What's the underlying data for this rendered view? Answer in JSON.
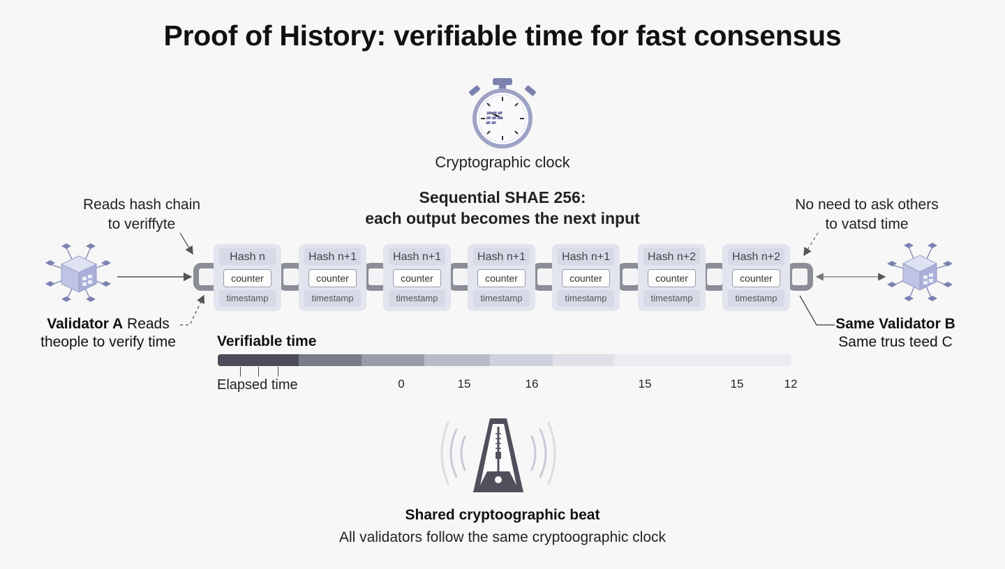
{
  "title": "Proof of History: verifiable time for fast consensus",
  "clock": {
    "label": "Cryptographic clock",
    "icon": "stopwatch-icon"
  },
  "sequence": {
    "line1": "Sequential SHAE 256:",
    "line2": "each output becomes the next input"
  },
  "left_note": {
    "line1": "Reads hash chain",
    "line2": "to veriffyte"
  },
  "right_note": {
    "line1": "No need to ask others",
    "line2": "to vatsd time"
  },
  "validator_a": {
    "name": "Validator A",
    "line1_rest": " Reads",
    "line2": "theople to verify time",
    "icon": "validator-node-icon"
  },
  "validator_b": {
    "name": "Same Validator B",
    "line2": "Same trus teed C",
    "icon": "validator-node-icon"
  },
  "chain": {
    "blocks": [
      {
        "hash": "Hash n",
        "counter": "counter",
        "timestamp": "timestamp"
      },
      {
        "hash": "Hash n+1",
        "counter": "counter",
        "timestamp": "timestamp"
      },
      {
        "hash": "Hash n+1",
        "counter": "counter",
        "timestamp": "timestamp"
      },
      {
        "hash": "Hash n+1",
        "counter": "counter",
        "timestamp": "timestamp"
      },
      {
        "hash": "Hash n+1",
        "counter": "counter",
        "timestamp": "timestamp"
      },
      {
        "hash": "Hash n+2",
        "counter": "counter",
        "timestamp": "timestamp"
      },
      {
        "hash": "Hash n+2",
        "counter": "counter",
        "timestamp": "timestamp"
      }
    ],
    "link_icon": "chain-link-icon"
  },
  "timeline": {
    "title": "Verifiable time",
    "axis_label": "Elapsed time",
    "ticks": [
      "0",
      "15",
      "16",
      "15",
      "15",
      "12"
    ],
    "segment_colors": [
      "#4b4c57",
      "#7a7c89",
      "#9a9caa",
      "#b9bbc7",
      "#cfd1dc",
      "#dfe0e8",
      "#ebebf2"
    ]
  },
  "beat": {
    "title": "Shared cryptoographic beat",
    "subtitle": "All validators follow the same cryptoographic clock",
    "icon": "metronome-icon"
  },
  "colors": {
    "accent": "#8a90b8",
    "dark": "#4f505c",
    "block_bg": "#e2e4ee"
  }
}
